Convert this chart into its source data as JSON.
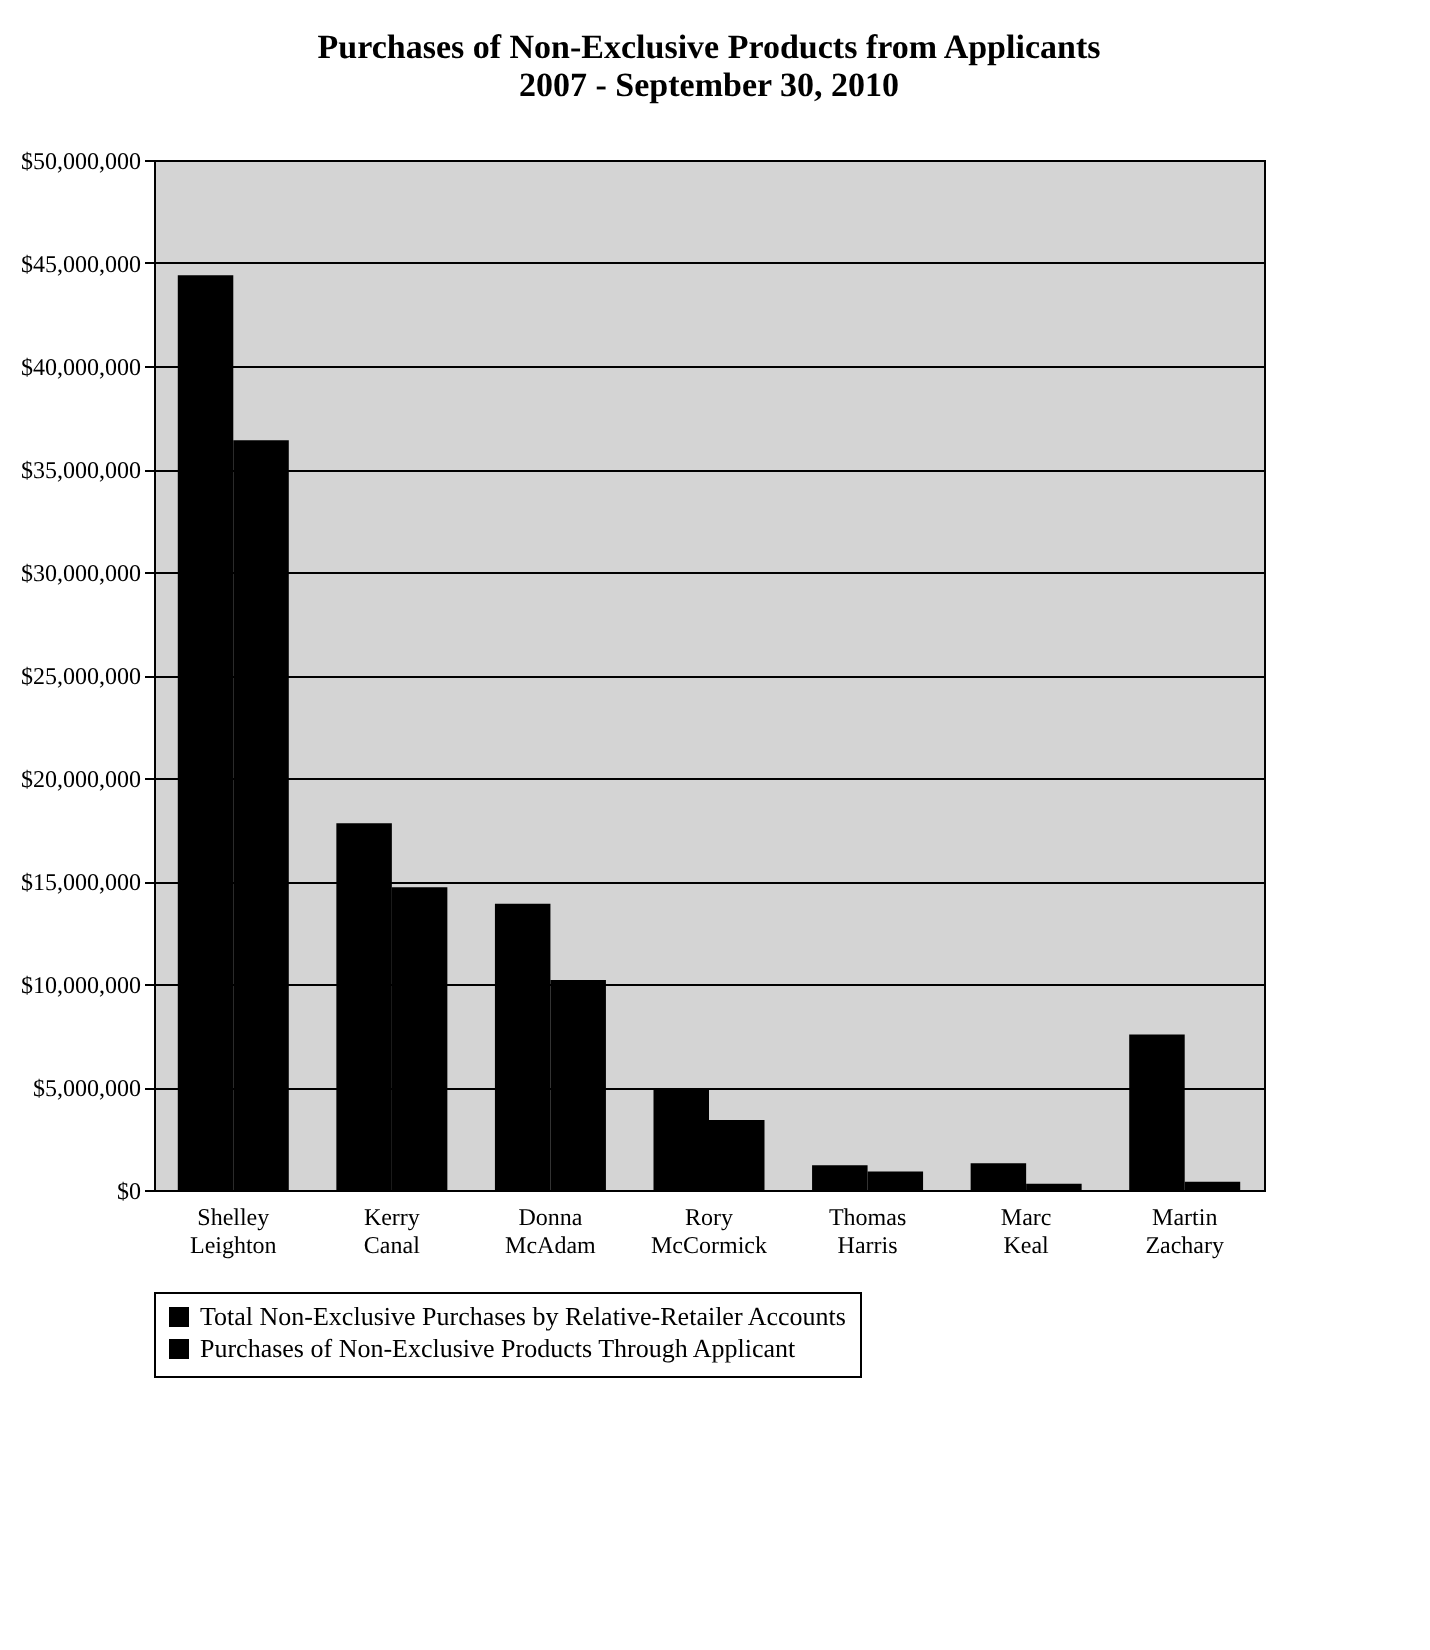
{
  "chart_data": {
    "type": "bar",
    "title": [
      "Purchases of Non-Exclusive Products from Applicants",
      "2007 - September 30, 2010"
    ],
    "categories": [
      "Shelley Leighton",
      "Kerry Canal",
      "Donna McAdam",
      "Rory McCormick",
      "Thomas Harris",
      "Marc Keal",
      "Martin Zachary"
    ],
    "series": [
      {
        "name": "Total Non-Exclusive Purchases by Relative-Retailer Accounts",
        "color": "#000000",
        "values": [
          44400000,
          17800000,
          13900000,
          4950000,
          1200000,
          1300000,
          7550000
        ]
      },
      {
        "name": "Purchases of Non-Exclusive Products Through Applicant",
        "color": "#000000",
        "values": [
          36400000,
          14700000,
          10200000,
          3400000,
          900000,
          300000,
          400000
        ]
      }
    ],
    "ylim": [
      0,
      50000000
    ],
    "yticks": [
      {
        "value": 0,
        "label": "$0"
      },
      {
        "value": 5000000,
        "label": "$5,000,000"
      },
      {
        "value": 10000000,
        "label": "$10,000,000"
      },
      {
        "value": 15000000,
        "label": "$15,000,000"
      },
      {
        "value": 20000000,
        "label": "$20,000,000"
      },
      {
        "value": 25000000,
        "label": "$25,000,000"
      },
      {
        "value": 30000000,
        "label": "$30,000,000"
      },
      {
        "value": 35000000,
        "label": "$35,000,000"
      },
      {
        "value": 40000000,
        "label": "$40,000,000"
      },
      {
        "value": 45000000,
        "label": "$45,000,000"
      },
      {
        "value": 50000000,
        "label": "$50,000,000"
      }
    ],
    "grid": "y",
    "legend": "bottom"
  }
}
